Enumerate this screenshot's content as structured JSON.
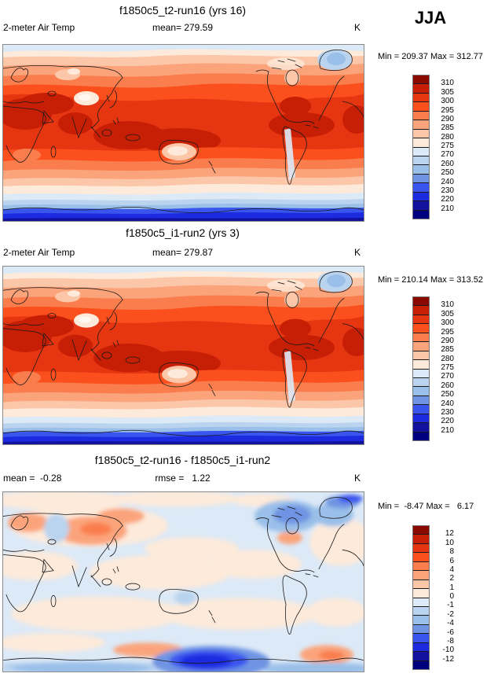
{
  "season": "JJA",
  "variable": "2-meter Air Temp",
  "units": "K",
  "panels": [
    {
      "title": "f1850c5_t2-run16 (yrs 16)",
      "left_label": "2-meter Air Temp",
      "center_label": "mean= 279.59",
      "units": "K",
      "minmax": "Min = 209.37 Max = 312.77",
      "colorbar_labels": [
        "310",
        "305",
        "300",
        "295",
        "290",
        "285",
        "280",
        "275",
        "270",
        "260",
        "250",
        "240",
        "230",
        "220",
        "210"
      ]
    },
    {
      "title": "f1850c5_i1-run2 (yrs 3)",
      "left_label": "2-meter Air Temp",
      "center_label": "mean= 279.87",
      "units": "K",
      "minmax": "Min = 210.14 Max = 313.52",
      "colorbar_labels": [
        "310",
        "305",
        "300",
        "295",
        "290",
        "285",
        "280",
        "275",
        "270",
        "260",
        "250",
        "240",
        "230",
        "220",
        "210"
      ]
    },
    {
      "title": "f1850c5_t2-run16 - f1850c5_i1-run2",
      "left_label": "mean =  -0.28",
      "center_label": "rmse =   1.22",
      "units": "K",
      "minmax": "Min =  -8.47 Max =   6.17",
      "colorbar_labels": [
        "12",
        "10",
        "8",
        "6",
        "4",
        "2",
        "1",
        "0",
        "-1",
        "-2",
        "-4",
        "-6",
        "-8",
        "-10",
        "-12"
      ]
    }
  ],
  "palette": [
    "#8b0a00",
    "#c71e06",
    "#e63511",
    "#fb501e",
    "#fa7e4d",
    "#fba47c",
    "#fcc6a8",
    "#fdeada",
    "#dce9f7",
    "#bad4ef",
    "#9abfe9",
    "#6f94e3",
    "#3a55ee",
    "#1c2be0",
    "#12129e",
    "#00007f"
  ],
  "chart_data": [
    {
      "type": "heatmap",
      "title": "f1850c5_t2-run16 (yrs 16)",
      "variable": "2-meter Air Temp",
      "season": "JJA",
      "units": "K",
      "mean": 279.59,
      "min": 209.37,
      "max": 312.77,
      "contour_levels": [
        210,
        220,
        230,
        240,
        250,
        260,
        270,
        275,
        280,
        285,
        290,
        295,
        300,
        305,
        310
      ],
      "projection": "global lat-lon, Pacific-centered",
      "legend_position": "right"
    },
    {
      "type": "heatmap",
      "title": "f1850c5_i1-run2 (yrs 3)",
      "variable": "2-meter Air Temp",
      "season": "JJA",
      "units": "K",
      "mean": 279.87,
      "min": 210.14,
      "max": 313.52,
      "contour_levels": [
        210,
        220,
        230,
        240,
        250,
        260,
        270,
        275,
        280,
        285,
        290,
        295,
        300,
        305,
        310
      ],
      "projection": "global lat-lon, Pacific-centered",
      "legend_position": "right"
    },
    {
      "type": "heatmap",
      "title": "f1850c5_t2-run16 - f1850c5_i1-run2",
      "variable": "2-meter Air Temp difference",
      "season": "JJA",
      "units": "K",
      "mean": -0.28,
      "rmse": 1.22,
      "min": -8.47,
      "max": 6.17,
      "contour_levels": [
        -12,
        -10,
        -8,
        -6,
        -4,
        -2,
        -1,
        0,
        1,
        2,
        4,
        6,
        8,
        10,
        12
      ],
      "projection": "global lat-lon, Pacific-centered",
      "legend_position": "right"
    }
  ]
}
